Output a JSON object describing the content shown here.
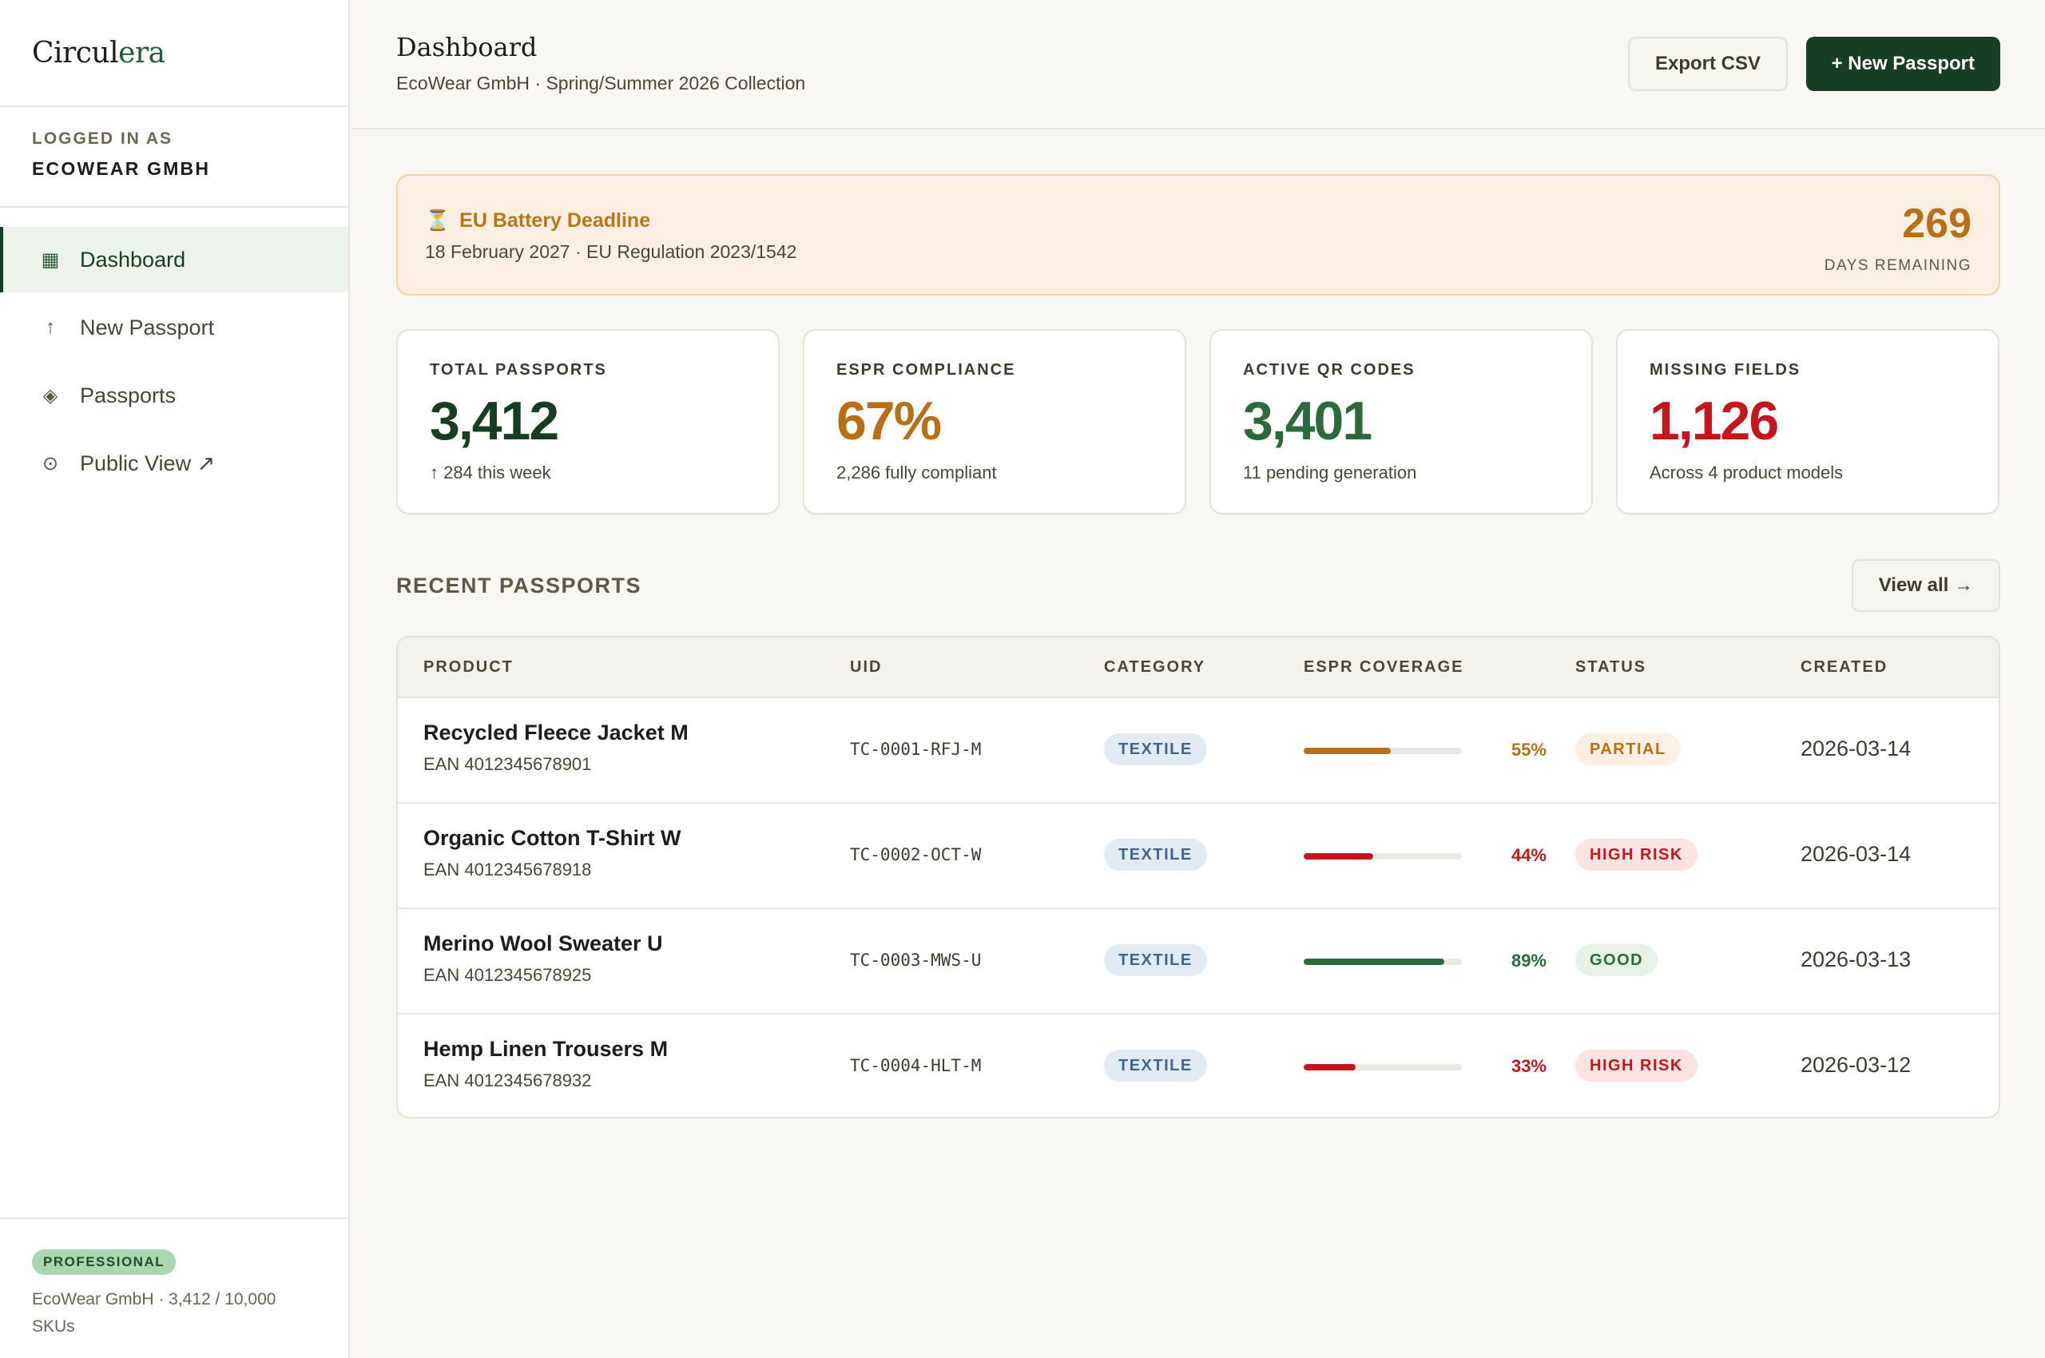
{
  "brand": {
    "prefix": "Circul",
    "accent": "era"
  },
  "account": {
    "label": "LOGGED IN AS",
    "name": "ECOWEAR GMBH"
  },
  "nav": [
    {
      "label": "Dashboard",
      "icon": "grid-icon",
      "glyph": "▦",
      "active": true
    },
    {
      "label": "New Passport",
      "icon": "arrow-up-icon",
      "glyph": "↑",
      "active": false
    },
    {
      "label": "Passports",
      "icon": "diamond-icon",
      "glyph": "◈",
      "active": false
    },
    {
      "label": "Public View ↗",
      "icon": "eye-circle-icon",
      "glyph": "⊙",
      "active": false
    }
  ],
  "plan": {
    "badge": "PROFESSIONAL",
    "text": "EcoWear GmbH · 3,412 / 10,000 SKUs"
  },
  "header": {
    "title": "Dashboard",
    "subtitle": "EcoWear GmbH · Spring/Summer 2026 Collection",
    "export_label": "Export CSV",
    "new_label": "+ New Passport"
  },
  "deadline": {
    "icon": "hourglass-icon",
    "title": "EU Battery Deadline",
    "subtitle": "18 February 2027 · EU Regulation 2023/1542",
    "days": "269",
    "days_label": "DAYS REMAINING"
  },
  "stats": [
    {
      "label": "TOTAL PASSPORTS",
      "value": "3,412",
      "sub": "↑ 284 this week",
      "color": "#183d22"
    },
    {
      "label": "ESPR COMPLIANCE",
      "value": "67%",
      "sub": "2,286 fully compliant",
      "color": "#b96f15"
    },
    {
      "label": "ACTIVE QR CODES",
      "value": "3,401",
      "sub": "11 pending generation",
      "color": "#2b6a3c"
    },
    {
      "label": "MISSING FIELDS",
      "value": "1,126",
      "sub": "Across 4 product models",
      "color": "#c4161c"
    }
  ],
  "recent": {
    "title": "RECENT PASSPORTS",
    "view_all": "View all →",
    "columns": [
      "PRODUCT",
      "UID",
      "CATEGORY",
      "ESPR COVERAGE",
      "STATUS",
      "CREATED"
    ],
    "rows": [
      {
        "name": "Recycled Fleece Jacket M",
        "ean": "EAN 4012345678901",
        "uid": "TC-0001-RFJ-M",
        "category": "TEXTILE",
        "coverage": 55,
        "coverage_label": "55%",
        "coverage_color": "#b96f15",
        "status": "PARTIAL",
        "status_bg": "#fdf0e2",
        "status_color": "#b96f15",
        "created": "2026-03-14"
      },
      {
        "name": "Organic Cotton T-Shirt W",
        "ean": "EAN 4012345678918",
        "uid": "TC-0002-OCT-W",
        "category": "TEXTILE",
        "coverage": 44,
        "coverage_label": "44%",
        "coverage_color": "#c4161c",
        "status": "HIGH RISK",
        "status_bg": "#fbe3e3",
        "status_color": "#c4161c",
        "created": "2026-03-14"
      },
      {
        "name": "Merino Wool Sweater U",
        "ean": "EAN 4012345678925",
        "uid": "TC-0003-MWS-U",
        "category": "TEXTILE",
        "coverage": 89,
        "coverage_label": "89%",
        "coverage_color": "#2b6a3c",
        "status": "GOOD",
        "status_bg": "#e7f2e8",
        "status_color": "#2b6a3c",
        "created": "2026-03-13"
      },
      {
        "name": "Hemp Linen Trousers M",
        "ean": "EAN 4012345678932",
        "uid": "TC-0004-HLT-M",
        "category": "TEXTILE",
        "coverage": 33,
        "coverage_label": "33%",
        "coverage_color": "#c4161c",
        "status": "HIGH RISK",
        "status_bg": "#fbe3e3",
        "status_color": "#c4161c",
        "created": "2026-03-12"
      }
    ]
  }
}
